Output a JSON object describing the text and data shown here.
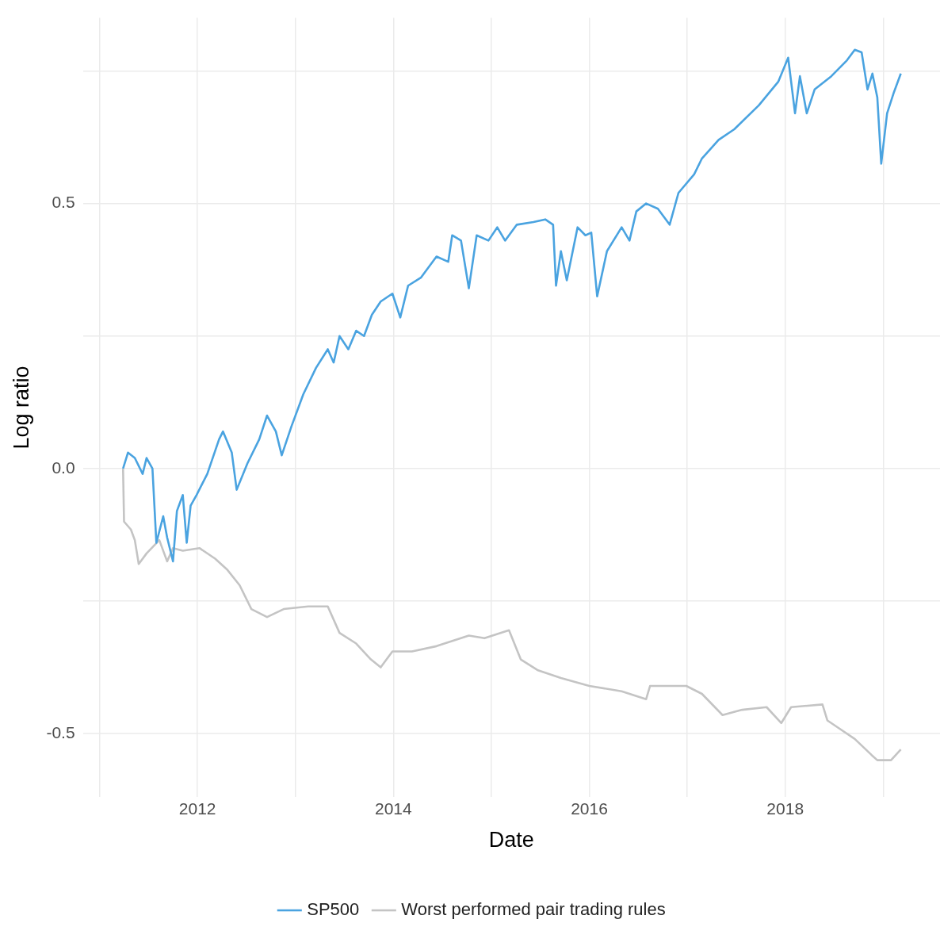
{
  "chart_data": {
    "type": "line",
    "xlabel": "Date",
    "ylabel": "Log ratio",
    "xlim": [
      2010.83,
      2019.58
    ],
    "ylim": [
      -0.62,
      0.85
    ],
    "xticks": [
      {
        "value": 2011,
        "label": null
      },
      2012,
      {
        "value": 2013,
        "label": null
      },
      2014,
      {
        "value": 2015,
        "label": null
      },
      2016,
      {
        "value": 2017,
        "label": null
      },
      2018,
      {
        "value": 2019,
        "label": null
      }
    ],
    "yticks": [
      -0.5,
      {
        "value": -0.25,
        "label": null
      },
      {
        "value": 0,
        "label": "0.0"
      },
      {
        "value": 0.25,
        "label": null
      },
      0.5,
      {
        "value": 0.75,
        "label": null
      }
    ],
    "grid": true,
    "legend": "bottom",
    "marker": "none",
    "line_style": "solid",
    "series": [
      {
        "name": "SP500",
        "color": "#4aa3e0",
        "x": [
          2011.24,
          2011.29,
          2011.36,
          2011.44,
          2011.48,
          2011.54,
          2011.58,
          2011.65,
          2011.69,
          2011.75,
          2011.79,
          2011.85,
          2011.89,
          2011.93,
          2011.99,
          2012.1,
          2012.22,
          2012.26,
          2012.35,
          2012.4,
          2012.51,
          2012.63,
          2012.71,
          2012.8,
          2012.86,
          2012.96,
          2013.08,
          2013.21,
          2013.33,
          2013.39,
          2013.45,
          2013.54,
          2013.62,
          2013.7,
          2013.78,
          2013.87,
          2013.99,
          2014.07,
          2014.15,
          2014.28,
          2014.44,
          2014.56,
          2014.6,
          2014.69,
          2014.77,
          2014.85,
          2014.97,
          2015.06,
          2015.14,
          2015.26,
          2015.43,
          2015.55,
          2015.63,
          2015.66,
          2015.71,
          2015.77,
          2015.88,
          2015.96,
          2016.02,
          2016.08,
          2016.18,
          2016.33,
          2016.41,
          2016.48,
          2016.58,
          2016.7,
          2016.82,
          2016.91,
          2017.07,
          2017.15,
          2017.32,
          2017.48,
          2017.73,
          2017.93,
          2018.03,
          2018.1,
          2018.15,
          2018.22,
          2018.3,
          2018.47,
          2018.63,
          2018.71,
          2018.78,
          2018.84,
          2018.89,
          2018.94,
          2018.98,
          2019.04,
          2019.11,
          2019.18
        ],
        "values": [
          0.0,
          0.03,
          0.02,
          -0.01,
          0.02,
          0.0,
          -0.14,
          -0.09,
          -0.13,
          -0.175,
          -0.08,
          -0.05,
          -0.14,
          -0.07,
          -0.05,
          -0.01,
          0.055,
          0.07,
          0.03,
          -0.04,
          0.01,
          0.055,
          0.1,
          0.07,
          0.025,
          0.08,
          0.14,
          0.19,
          0.225,
          0.2,
          0.25,
          0.225,
          0.26,
          0.25,
          0.29,
          0.315,
          0.33,
          0.285,
          0.345,
          0.36,
          0.4,
          0.39,
          0.44,
          0.43,
          0.34,
          0.44,
          0.43,
          0.455,
          0.43,
          0.46,
          0.465,
          0.47,
          0.46,
          0.345,
          0.41,
          0.355,
          0.455,
          0.44,
          0.445,
          0.325,
          0.41,
          0.455,
          0.43,
          0.485,
          0.5,
          0.49,
          0.46,
          0.52,
          0.555,
          0.585,
          0.62,
          0.64,
          0.685,
          0.73,
          0.775,
          0.67,
          0.74,
          0.67,
          0.715,
          0.74,
          0.77,
          0.79,
          0.785,
          0.715,
          0.745,
          0.7,
          0.575,
          0.67,
          0.71,
          0.745
        ]
      },
      {
        "name": "Worst performed pair trading rules",
        "color": "#c4c4c4",
        "x": [
          2011.24,
          2011.25,
          2011.32,
          2011.36,
          2011.4,
          2011.48,
          2011.61,
          2011.69,
          2011.75,
          2011.85,
          2012.02,
          2012.18,
          2012.3,
          2012.43,
          2012.55,
          2012.71,
          2012.88,
          2013.13,
          2013.33,
          2013.45,
          2013.62,
          2013.77,
          2013.87,
          2013.99,
          2014.19,
          2014.44,
          2014.77,
          2014.93,
          2015.18,
          2015.3,
          2015.47,
          2015.71,
          2016.0,
          2016.33,
          2016.58,
          2016.62,
          2016.99,
          2017.15,
          2017.36,
          2017.56,
          2017.81,
          2017.96,
          2018.06,
          2018.38,
          2018.43,
          2018.55,
          2018.71,
          2018.88,
          2018.94,
          2019.08,
          2019.18
        ],
        "values": [
          0.0,
          -0.1,
          -0.115,
          -0.135,
          -0.18,
          -0.16,
          -0.135,
          -0.175,
          -0.15,
          -0.155,
          -0.15,
          -0.17,
          -0.19,
          -0.22,
          -0.265,
          -0.28,
          -0.265,
          -0.26,
          -0.26,
          -0.31,
          -0.33,
          -0.36,
          -0.375,
          -0.345,
          -0.345,
          -0.335,
          -0.315,
          -0.32,
          -0.305,
          -0.36,
          -0.38,
          -0.395,
          -0.41,
          -0.42,
          -0.435,
          -0.41,
          -0.41,
          -0.425,
          -0.465,
          -0.455,
          -0.45,
          -0.48,
          -0.45,
          -0.445,
          -0.475,
          -0.49,
          -0.51,
          -0.54,
          -0.55,
          -0.55,
          -0.53
        ]
      }
    ]
  }
}
